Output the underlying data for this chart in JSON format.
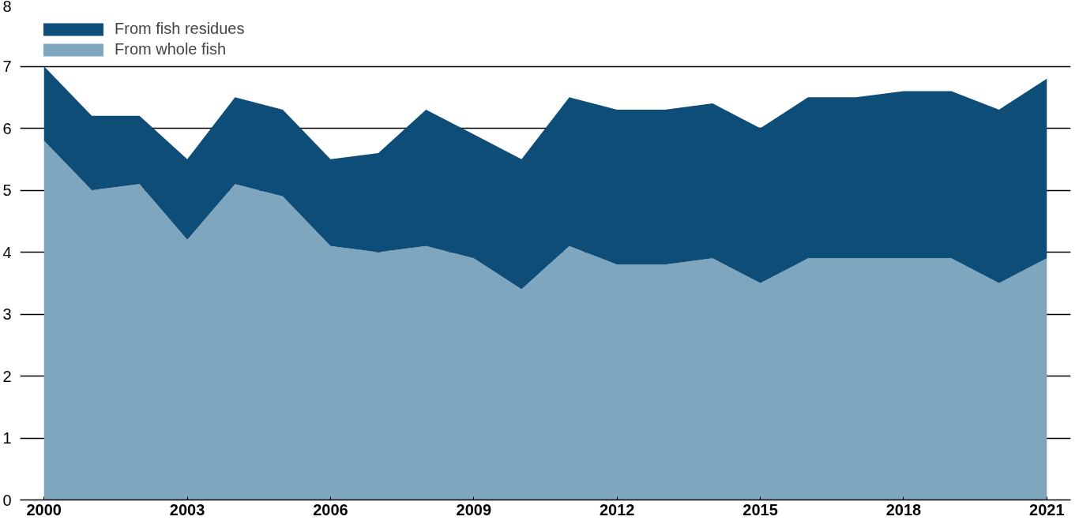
{
  "chart_data": {
    "type": "area",
    "stacked": true,
    "x": [
      2000,
      2001,
      2002,
      2003,
      2004,
      2005,
      2006,
      2007,
      2008,
      2009,
      2010,
      2011,
      2012,
      2013,
      2014,
      2015,
      2016,
      2017,
      2018,
      2019,
      2020,
      2021
    ],
    "series": [
      {
        "name": "From whole fish",
        "color": "#7fa6bf",
        "values": [
          5.8,
          5.0,
          5.1,
          4.2,
          5.1,
          4.9,
          4.1,
          4.0,
          4.1,
          3.9,
          3.4,
          4.1,
          3.8,
          3.8,
          3.9,
          3.5,
          3.9,
          3.9,
          3.9,
          3.9,
          3.5,
          3.9
        ]
      },
      {
        "name": "From fish residues",
        "color": "#0e4d78",
        "values": [
          1.2,
          1.2,
          1.1,
          1.3,
          1.4,
          1.4,
          1.4,
          1.6,
          2.2,
          2.0,
          2.1,
          2.4,
          2.5,
          2.5,
          2.5,
          2.5,
          2.6,
          2.6,
          2.7,
          2.7,
          2.8,
          2.9
        ]
      }
    ],
    "xlim": [
      1999.5,
      2021.5
    ],
    "xticks": [
      2000,
      2003,
      2006,
      2009,
      2012,
      2015,
      2018,
      2021
    ],
    "ylim": [
      0,
      8
    ],
    "yticks": [
      0,
      1,
      2,
      3,
      4,
      5,
      6,
      7,
      8
    ],
    "grid": "y",
    "legend": "top left"
  }
}
